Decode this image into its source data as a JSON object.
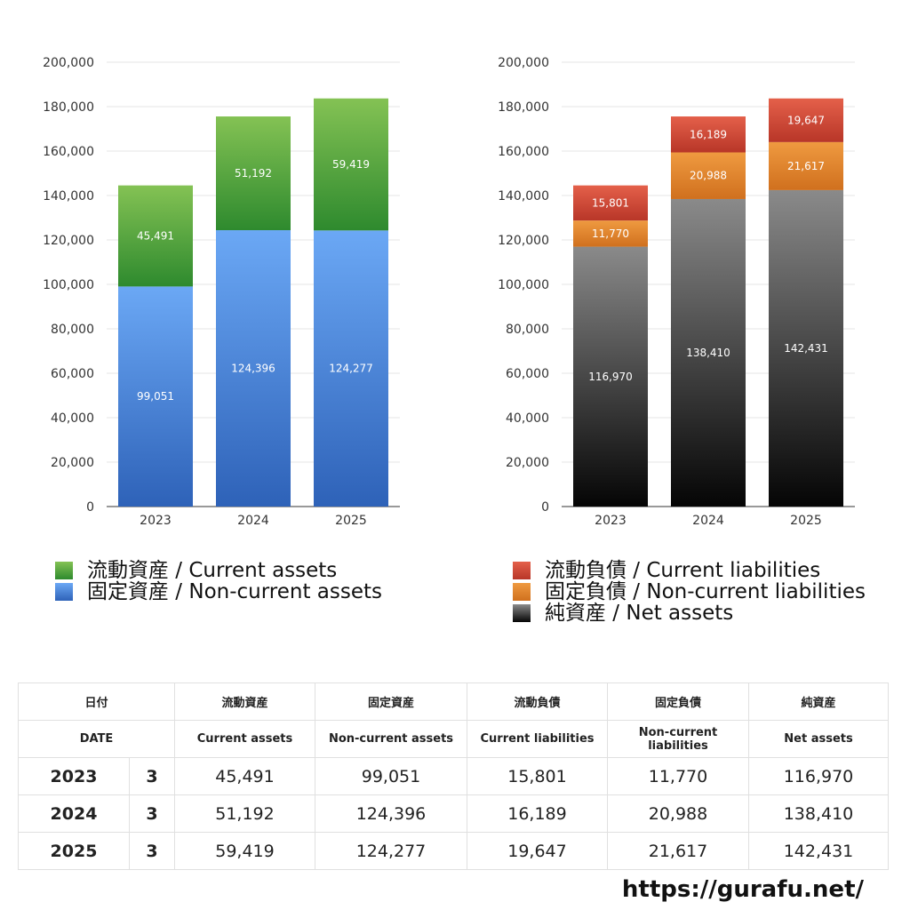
{
  "chart_data": [
    {
      "type": "bar",
      "stacked": true,
      "categories": [
        "2023",
        "2024",
        "2025"
      ],
      "ylim": [
        0,
        200000
      ],
      "yticks": [
        "0",
        "20,000",
        "40,000",
        "60,000",
        "80,000",
        "100,000",
        "120,000",
        "140,000",
        "160,000",
        "180,000",
        "200,000"
      ],
      "grid": true,
      "legend_position": "bottom",
      "series": [
        {
          "name": "固定資産 / Non-current assets",
          "values": [
            99051,
            124396,
            124277
          ],
          "labels": [
            "99,051",
            "124,396",
            "124,277"
          ],
          "color_top": "#6ba8f5",
          "color_bottom": "#2e62b8"
        },
        {
          "name": "流動資産 / Current assets",
          "values": [
            45491,
            51192,
            59419
          ],
          "labels": [
            "45,491",
            "51,192",
            "59,419"
          ],
          "color_top": "#84c254",
          "color_bottom": "#2e8a2e"
        }
      ],
      "legend_order": [
        1,
        0
      ]
    },
    {
      "type": "bar",
      "stacked": true,
      "categories": [
        "2023",
        "2024",
        "2025"
      ],
      "ylim": [
        0,
        200000
      ],
      "yticks": [
        "0",
        "20,000",
        "40,000",
        "60,000",
        "80,000",
        "100,000",
        "120,000",
        "140,000",
        "160,000",
        "180,000",
        "200,000"
      ],
      "grid": true,
      "legend_position": "bottom",
      "series": [
        {
          "name": "純資産 / Net assets",
          "values": [
            116970,
            138410,
            142431
          ],
          "labels": [
            "116,970",
            "138,410",
            "142,431"
          ],
          "color_top": "#8a8a8a",
          "color_bottom": "#050505"
        },
        {
          "name": "固定負債 / Non-current liabilities",
          "values": [
            11770,
            20988,
            21617
          ],
          "labels": [
            "11,770",
            "20,988",
            "21,617"
          ],
          "color_top": "#ef9a40",
          "color_bottom": "#d0701e"
        },
        {
          "name": "流動負債 / Current liabilities",
          "values": [
            15801,
            16189,
            19647
          ],
          "labels": [
            "15,801",
            "16,189",
            "19,647"
          ],
          "color_top": "#e4604a",
          "color_bottom": "#b83628"
        }
      ],
      "legend_order": [
        2,
        1,
        0
      ]
    }
  ],
  "table": {
    "header_jp": [
      "日付",
      "流動資産",
      "固定資産",
      "流動負債",
      "固定負債",
      "純資産"
    ],
    "header_en": [
      "DATE",
      "Current assets",
      "Non-current assets",
      "Current liabilities",
      "Non-current liabilities",
      "Net assets"
    ],
    "rows": [
      {
        "year": "2023",
        "month": "3",
        "values": [
          "45,491",
          "99,051",
          "15,801",
          "11,770",
          "116,970"
        ]
      },
      {
        "year": "2024",
        "month": "3",
        "values": [
          "51,192",
          "124,396",
          "16,189",
          "20,988",
          "138,410"
        ]
      },
      {
        "year": "2025",
        "month": "3",
        "values": [
          "59,419",
          "124,277",
          "19,647",
          "21,617",
          "142,431"
        ]
      }
    ]
  },
  "footer": {
    "url": "https://gurafu.net/"
  }
}
